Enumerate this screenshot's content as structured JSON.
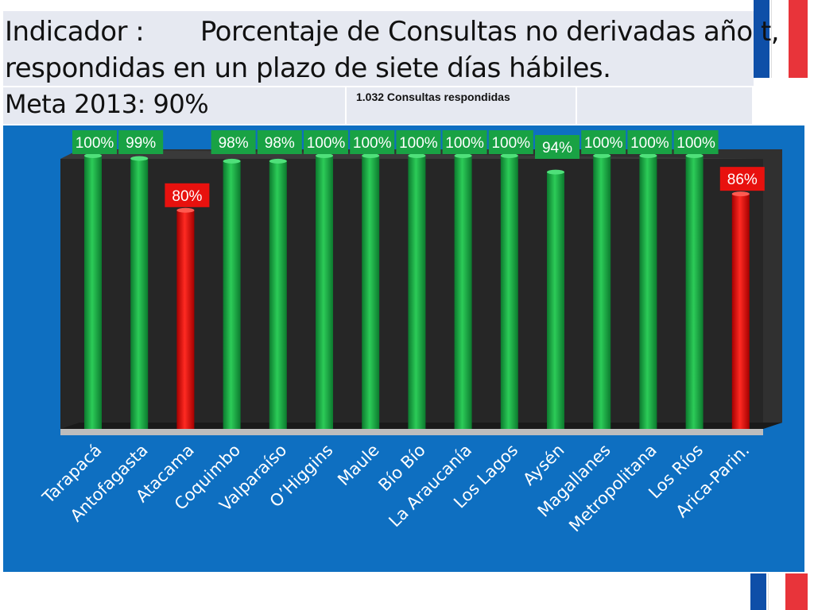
{
  "title": {
    "line1_label": "Indicador :",
    "line1_text": "Porcentaje de Consultas no derivadas año t,",
    "line2_text": "respondidas en un plazo de siete días hábiles.",
    "meta": "Meta 2013: 90%",
    "subtitle": "1.032 Consultas respondidas"
  },
  "colors": {
    "panel": "#0e6fc1",
    "plot": "#2b2b2b",
    "good": "#19a244",
    "bad": "#e8110e",
    "label_good": "#19a244",
    "label_bad": "#e8110e",
    "label_mid": "#0e6fc1"
  },
  "chart_data": {
    "type": "bar",
    "title": "",
    "xlabel": "",
    "ylabel": "",
    "ylim": [
      0,
      100
    ],
    "categories": [
      "Tarapacá",
      "Antofagasta",
      "Atacama",
      "Coquimbo",
      "Valparaíso",
      "O’Higgins",
      "Maule",
      "Bío Bío",
      "La Araucanía",
      "Los Lagos",
      "Aysén",
      "Magallanes",
      "Metropolitana",
      "Los Ríos",
      "Arica-Parin."
    ],
    "values": [
      100,
      99,
      80,
      98,
      98,
      100,
      100,
      100,
      100,
      100,
      94,
      100,
      100,
      100,
      86
    ],
    "labels": [
      "100%",
      "99%",
      "80%",
      "98%",
      "98%",
      "100%",
      "100%",
      "100%",
      "100%",
      "100%",
      "94%",
      "100%",
      "100%",
      "100%",
      "86%"
    ],
    "bar_status": [
      "good",
      "good",
      "bad",
      "good",
      "good",
      "good",
      "good",
      "good",
      "good",
      "good",
      "good",
      "good",
      "good",
      "good",
      "bad"
    ],
    "grid": false,
    "legend": "none"
  }
}
